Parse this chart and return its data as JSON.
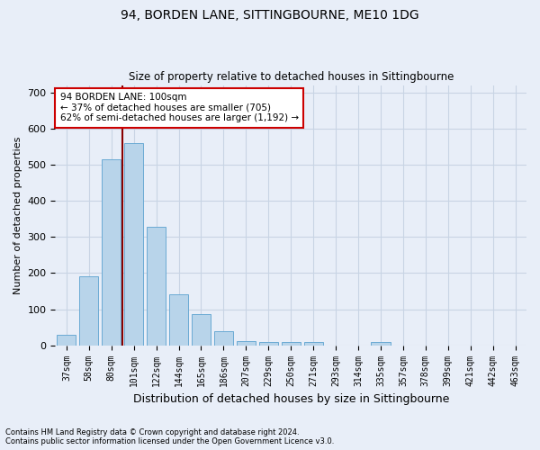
{
  "title": "94, BORDEN LANE, SITTINGBOURNE, ME10 1DG",
  "subtitle": "Size of property relative to detached houses in Sittingbourne",
  "xlabel": "Distribution of detached houses by size in Sittingbourne",
  "ylabel": "Number of detached properties",
  "footnote1": "Contains HM Land Registry data © Crown copyright and database right 2024.",
  "footnote2": "Contains public sector information licensed under the Open Government Licence v3.0.",
  "categories": [
    "37sqm",
    "58sqm",
    "80sqm",
    "101sqm",
    "122sqm",
    "144sqm",
    "165sqm",
    "186sqm",
    "207sqm",
    "229sqm",
    "250sqm",
    "271sqm",
    "293sqm",
    "314sqm",
    "335sqm",
    "357sqm",
    "378sqm",
    "399sqm",
    "421sqm",
    "442sqm",
    "463sqm"
  ],
  "values": [
    30,
    190,
    515,
    560,
    328,
    140,
    87,
    40,
    12,
    10,
    8,
    10,
    0,
    0,
    8,
    0,
    0,
    0,
    0,
    0,
    0
  ],
  "bar_color": "#b8d4ea",
  "bar_edge_color": "#6aaad4",
  "grid_color": "#c8d4e4",
  "background_color": "#e8eef8",
  "vline_color": "#880000",
  "annotation_text": "94 BORDEN LANE: 100sqm\n← 37% of detached houses are smaller (705)\n62% of semi-detached houses are larger (1,192) →",
  "annotation_box_color": "#ffffff",
  "annotation_box_edge": "#cc0000",
  "ylim": [
    0,
    720
  ],
  "yticks": [
    0,
    100,
    200,
    300,
    400,
    500,
    600,
    700
  ]
}
